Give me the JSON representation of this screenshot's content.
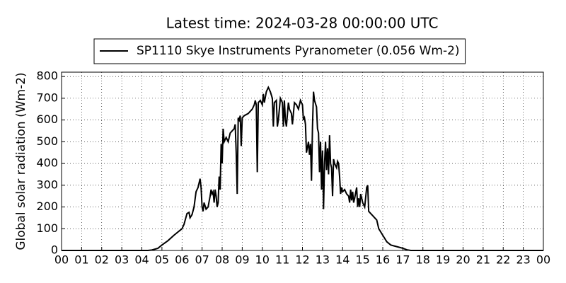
{
  "chart_data": {
    "type": "line",
    "title": "Latest time: 2024-03-28 00:00:00 UTC",
    "ylabel": "Global solar radiation (Wm-2)",
    "grid": true,
    "legend": "upper center",
    "xlim": [
      0,
      24
    ],
    "ylim": [
      0,
      820
    ],
    "xticks": [
      {
        "value": 0,
        "label": "00"
      },
      {
        "value": 1,
        "label": "01"
      },
      {
        "value": 2,
        "label": "02"
      },
      {
        "value": 3,
        "label": "03"
      },
      {
        "value": 4,
        "label": "04"
      },
      {
        "value": 5,
        "label": "05"
      },
      {
        "value": 6,
        "label": "06"
      },
      {
        "value": 7,
        "label": "07"
      },
      {
        "value": 8,
        "label": "08"
      },
      {
        "value": 9,
        "label": "09"
      },
      {
        "value": 10,
        "label": "10"
      },
      {
        "value": 11,
        "label": "11"
      },
      {
        "value": 12,
        "label": "12"
      },
      {
        "value": 13,
        "label": "13"
      },
      {
        "value": 14,
        "label": "14"
      },
      {
        "value": 15,
        "label": "15"
      },
      {
        "value": 16,
        "label": "16"
      },
      {
        "value": 17,
        "label": "17"
      },
      {
        "value": 18,
        "label": "18"
      },
      {
        "value": 19,
        "label": "19"
      },
      {
        "value": 20,
        "label": "20"
      },
      {
        "value": 21,
        "label": "21"
      },
      {
        "value": 22,
        "label": "22"
      },
      {
        "value": 23,
        "label": "23"
      },
      {
        "value": 24,
        "label": "00"
      }
    ],
    "yticks": [
      0,
      100,
      200,
      300,
      400,
      500,
      600,
      700,
      800
    ],
    "x": [
      0,
      4.3,
      4.5,
      4.8,
      5.0,
      5.3,
      5.6,
      5.8,
      6.0,
      6.1,
      6.25,
      6.35,
      6.4,
      6.5,
      6.6,
      6.7,
      6.8,
      6.9,
      6.95,
      7.0,
      7.05,
      7.1,
      7.2,
      7.3,
      7.4,
      7.45,
      7.5,
      7.55,
      7.6,
      7.65,
      7.7,
      7.75,
      7.8,
      7.85,
      7.9,
      7.95,
      8.0,
      8.05,
      8.1,
      8.2,
      8.3,
      8.4,
      8.5,
      8.6,
      8.65,
      8.7,
      8.75,
      8.8,
      8.85,
      8.9,
      8.95,
      9.0,
      9.1,
      9.3,
      9.5,
      9.6,
      9.65,
      9.7,
      9.75,
      9.8,
      9.9,
      10.0,
      10.05,
      10.1,
      10.2,
      10.3,
      10.4,
      10.5,
      10.55,
      10.6,
      10.7,
      10.75,
      10.8,
      10.9,
      11.0,
      11.05,
      11.1,
      11.15,
      11.2,
      11.3,
      11.35,
      11.45,
      11.5,
      11.6,
      11.7,
      11.8,
      11.9,
      12.0,
      12.05,
      12.1,
      12.15,
      12.2,
      12.3,
      12.35,
      12.4,
      12.45,
      12.5,
      12.55,
      12.6,
      12.7,
      12.75,
      12.8,
      12.85,
      12.9,
      12.95,
      13.0,
      13.05,
      13.1,
      13.15,
      13.2,
      13.25,
      13.3,
      13.35,
      13.4,
      13.45,
      13.5,
      13.55,
      13.6,
      13.7,
      13.75,
      13.8,
      13.85,
      13.9,
      13.95,
      14.0,
      14.1,
      14.2,
      14.3,
      14.35,
      14.4,
      14.45,
      14.5,
      14.55,
      14.6,
      14.7,
      14.75,
      14.8,
      14.85,
      14.9,
      15.0,
      15.1,
      15.2,
      15.25,
      15.3,
      15.4,
      15.5,
      15.6,
      15.7,
      15.8,
      16.0,
      16.2,
      16.4,
      16.6,
      16.8,
      17.0,
      17.2,
      17.4,
      24
    ],
    "series": [
      {
        "name": "SP1110 Skye Instruments Pyranometer (0.056 Wm-2)",
        "color": "#000000",
        "values": [
          0,
          0,
          2,
          10,
          25,
          45,
          70,
          85,
          100,
          120,
          170,
          175,
          150,
          165,
          200,
          270,
          290,
          330,
          290,
          200,
          180,
          220,
          190,
          200,
          250,
          280,
          260,
          270,
          220,
          280,
          250,
          200,
          220,
          340,
          280,
          490,
          400,
          560,
          500,
          520,
          500,
          540,
          550,
          560,
          580,
          450,
          260,
          610,
          600,
          620,
          480,
          610,
          620,
          630,
          650,
          670,
          690,
          670,
          360,
          680,
          690,
          670,
          720,
          680,
          730,
          750,
          730,
          700,
          570,
          680,
          690,
          570,
          600,
          700,
          680,
          570,
          690,
          600,
          570,
          680,
          650,
          630,
          580,
          680,
          670,
          650,
          690,
          670,
          600,
          610,
          580,
          450,
          500,
          440,
          490,
          320,
          570,
          730,
          690,
          660,
          560,
          540,
          360,
          500,
          280,
          460,
          190,
          400,
          500,
          370,
          470,
          350,
          530,
          400,
          380,
          250,
          420,
          400,
          380,
          410,
          400,
          340,
          260,
          290,
          270,
          280,
          260,
          250,
          220,
          280,
          230,
          270,
          220,
          240,
          290,
          200,
          240,
          200,
          260,
          220,
          200,
          290,
          300,
          180,
          170,
          160,
          150,
          140,
          100,
          70,
          40,
          25,
          20,
          15,
          10,
          3,
          0,
          0
        ]
      }
    ]
  }
}
